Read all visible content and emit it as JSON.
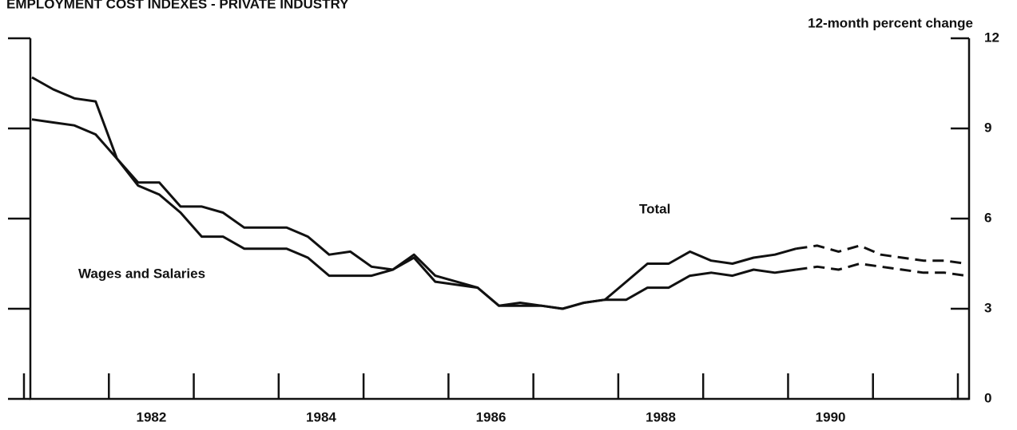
{
  "chart_data": {
    "type": "line",
    "title": "EMPLOYMENT COST INDEXES - PRIVATE INDUSTRY",
    "y_axis_label": "12-month percent change",
    "x": [
      1981,
      1981.25,
      1981.5,
      1981.75,
      1982,
      1982.25,
      1982.5,
      1982.75,
      1983,
      1983.25,
      1983.5,
      1983.75,
      1984,
      1984.25,
      1984.5,
      1984.75,
      1985,
      1985.25,
      1985.5,
      1985.75,
      1986,
      1986.25,
      1986.5,
      1986.75,
      1987,
      1987.25,
      1987.5,
      1987.75,
      1988,
      1988.25,
      1988.5,
      1988.75,
      1989,
      1989.25,
      1989.5,
      1989.75,
      1990,
      1990.25,
      1990.5,
      1990.75,
      1991,
      1991.25,
      1991.5,
      1991.75,
      1992
    ],
    "series": [
      {
        "name": "Total",
        "color": "#111111",
        "values": [
          10.7,
          10.3,
          10.0,
          9.9,
          8.0,
          7.2,
          7.2,
          6.4,
          6.4,
          6.2,
          5.7,
          5.7,
          5.7,
          5.4,
          4.8,
          4.9,
          4.4,
          4.3,
          4.8,
          4.1,
          3.9,
          3.7,
          3.1,
          3.2,
          3.1,
          3.0,
          3.2,
          3.3,
          3.9,
          4.5,
          4.5,
          4.9,
          4.6,
          4.5,
          4.7,
          4.8,
          5.0,
          5.1,
          4.9,
          5.1,
          4.8,
          4.7,
          4.6,
          4.6,
          4.5
        ]
      },
      {
        "name": "Wages and Salaries",
        "color": "#111111",
        "values": [
          9.3,
          9.2,
          9.1,
          8.8,
          8.0,
          7.1,
          6.8,
          6.2,
          5.4,
          5.4,
          5.0,
          5.0,
          5.0,
          4.7,
          4.1,
          4.1,
          4.1,
          4.3,
          4.7,
          3.9,
          3.8,
          3.7,
          3.1,
          3.1,
          3.1,
          3.0,
          3.2,
          3.3,
          3.3,
          3.7,
          3.7,
          4.1,
          4.2,
          4.1,
          4.3,
          4.2,
          4.3,
          4.4,
          4.3,
          4.5,
          4.4,
          4.3,
          4.2,
          4.2,
          4.1
        ]
      }
    ],
    "dashed_from": 1990,
    "xlim": [
      1981,
      1992
    ],
    "xticks": [
      1981,
      1982,
      1983,
      1984,
      1985,
      1986,
      1987,
      1988,
      1989,
      1990,
      1991,
      1992
    ],
    "xlabels": [
      1982,
      1984,
      1986,
      1988,
      1990
    ],
    "ylim": [
      0,
      12
    ],
    "yticks": [
      0,
      3,
      6,
      9,
      12
    ],
    "y_axis_side": "right"
  }
}
